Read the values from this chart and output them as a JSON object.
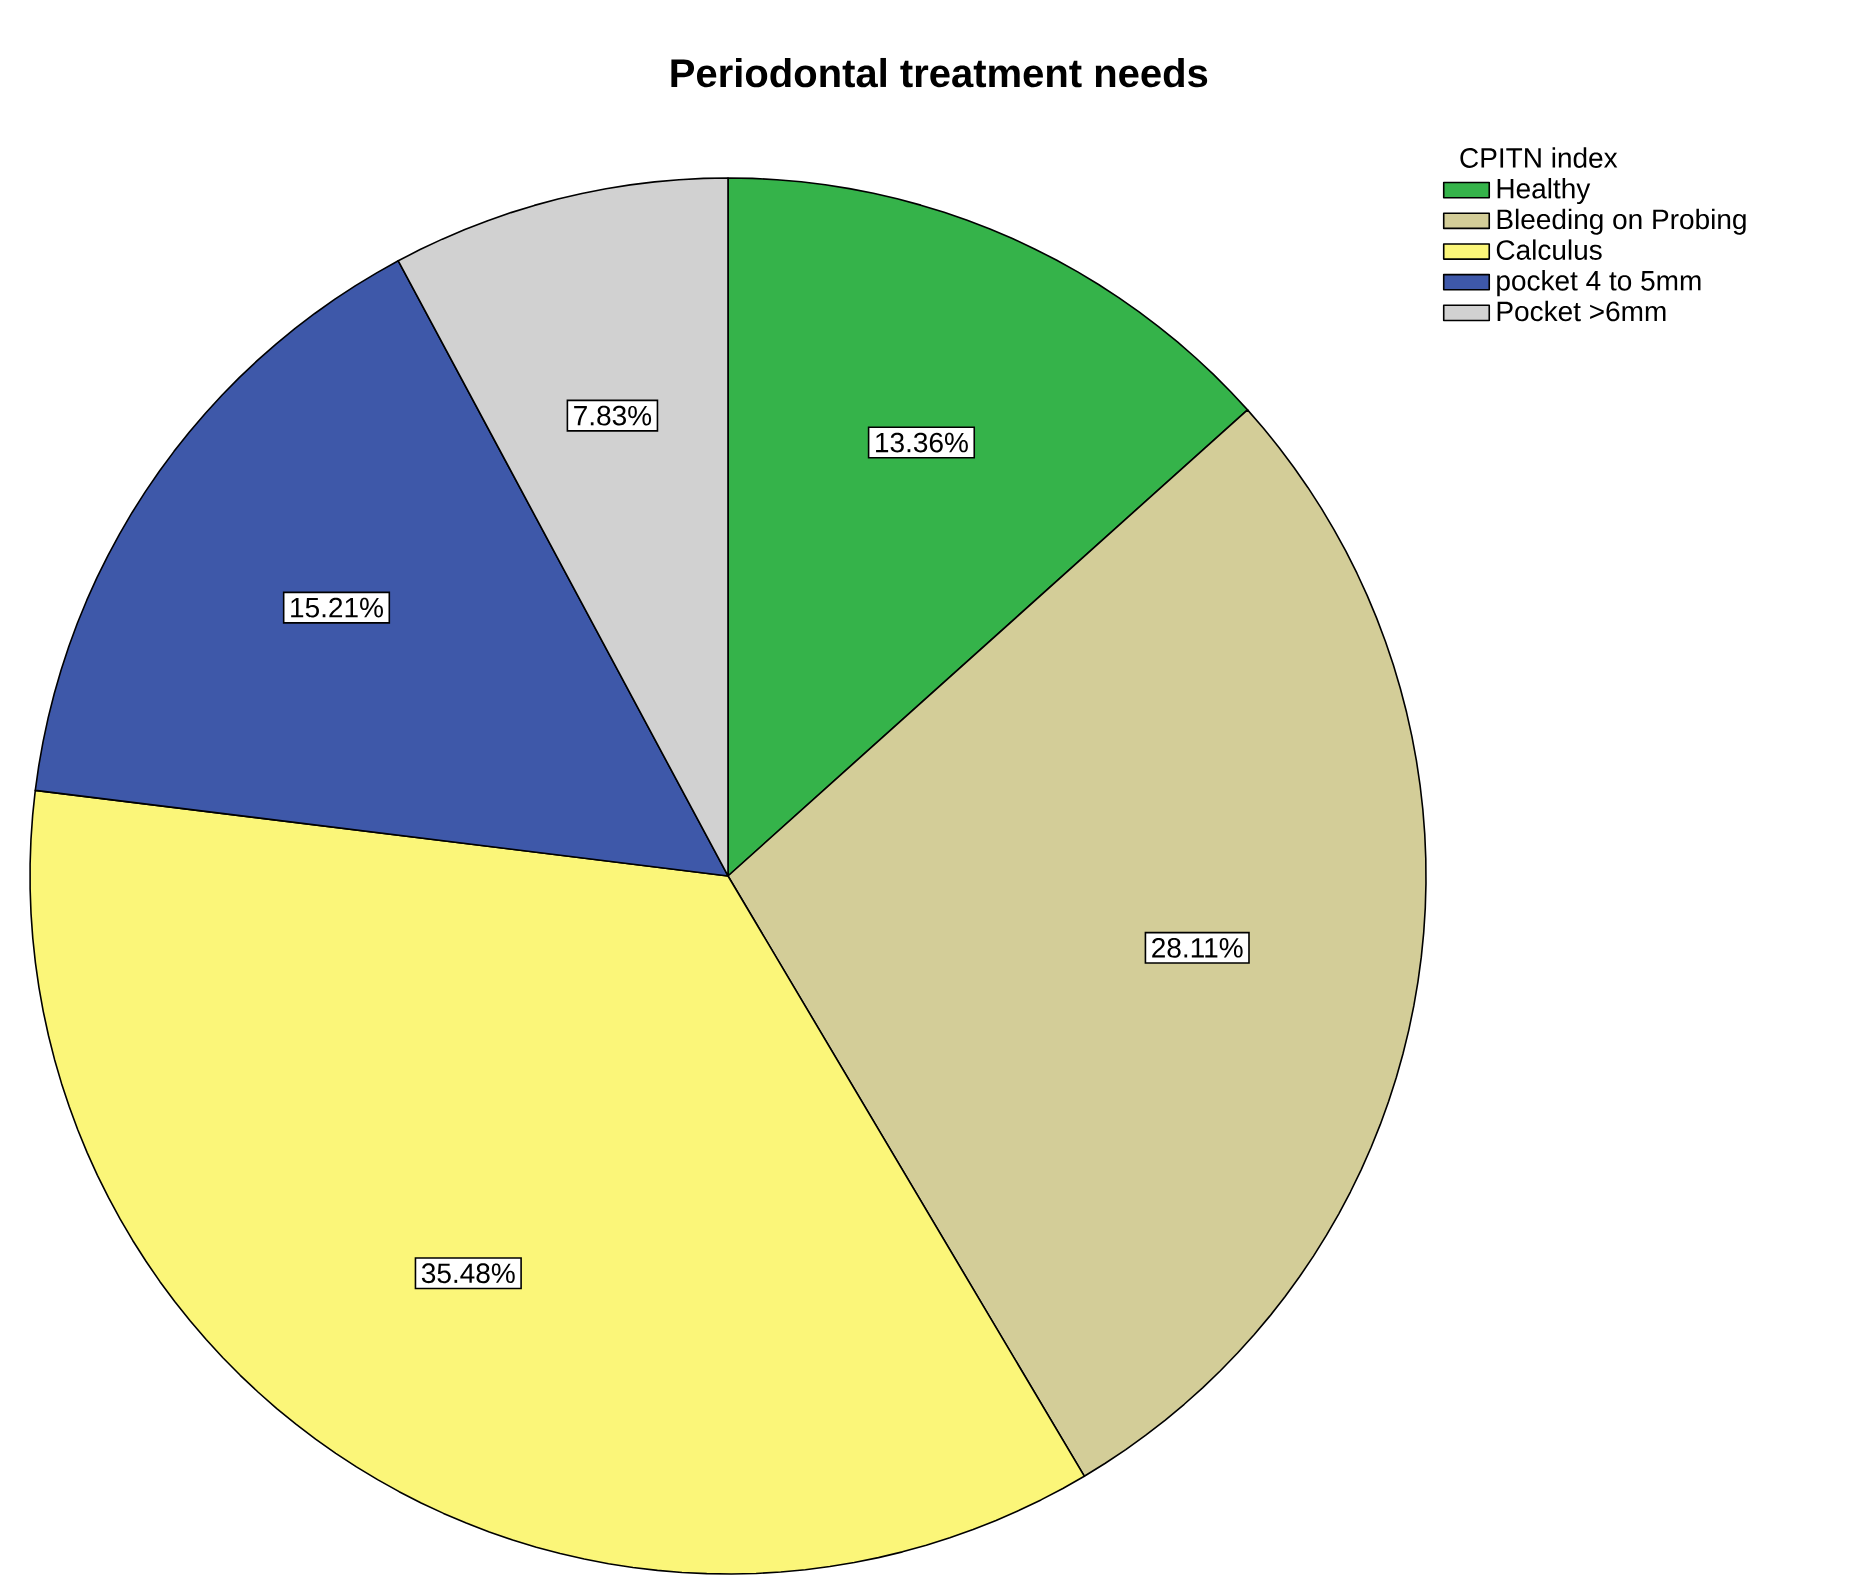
{
  "chart_data": {
    "type": "pie",
    "title": "Periodontal treatment needs",
    "legend_title": "CPITN index",
    "categories": [
      "Healthy",
      "Bleeding on Probing",
      "Calculus",
      "pocket 4 to 5mm",
      "Pocket >6mm"
    ],
    "values": [
      13.36,
      28.11,
      35.48,
      15.21,
      7.83
    ],
    "colors": [
      "#35b34a",
      "#d3cd98",
      "#fbf679",
      "#3e58a9",
      "#d1d1d1"
    ],
    "value_labels": [
      "13.36%",
      "28.11%",
      "35.48%",
      "15.21%",
      "7.83%"
    ],
    "legend": "top right"
  }
}
